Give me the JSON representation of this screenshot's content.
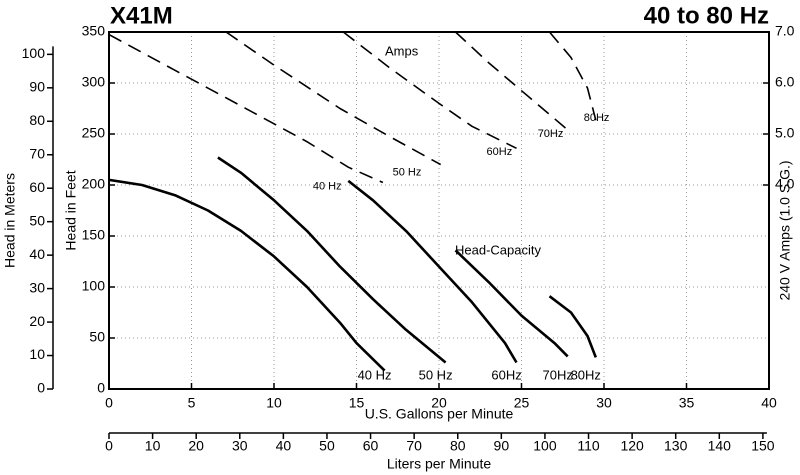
{
  "chart_data": {
    "type": "line",
    "title": "X41M",
    "subtitle": "40 to 80 Hz",
    "x_label": "U.S. Gallons per Minute",
    "y_label": "Head in Feet",
    "y2_label": "240 V Amps (1.0 S.G.)",
    "xlim": [
      0,
      40
    ],
    "xticks": [
      0,
      5,
      10,
      15,
      20,
      25,
      30,
      35,
      40
    ],
    "ylim": [
      0,
      350
    ],
    "yticks": [
      0,
      50,
      100,
      150,
      200,
      250,
      300,
      350
    ],
    "y2lim": [
      0,
      7
    ],
    "y2ticks": [
      {
        "value": 4,
        "label": "4.0"
      },
      {
        "value": 5,
        "label": "5.0"
      },
      {
        "value": 6,
        "label": "6.0"
      },
      {
        "value": 7,
        "label": "7.0"
      }
    ],
    "grid": true,
    "meters_axis": {
      "label": "Head in Meters",
      "lim": [
        0,
        106.68
      ],
      "ticks": [
        0,
        10,
        20,
        30,
        40,
        50,
        60,
        70,
        80,
        90,
        100
      ]
    },
    "lpm_axis": {
      "label": "Liters per Minute",
      "lim": [
        0,
        151.4
      ],
      "ticks": [
        0,
        10,
        20,
        30,
        40,
        50,
        60,
        70,
        80,
        90,
        100,
        110,
        120,
        130,
        140,
        150
      ]
    },
    "annotations": [
      "Amps",
      "Head-Capacity"
    ],
    "series": [
      {
        "name": "40 Hz",
        "color": "#000000",
        "x": [
          0,
          2,
          4,
          6,
          8,
          10,
          12,
          14,
          15,
          16.7
        ],
        "values": [
          205,
          200,
          190,
          175,
          155,
          130,
          100,
          65,
          45,
          18
        ]
      },
      {
        "name": "50 Hz",
        "color": "#000000",
        "x": [
          6.6,
          8,
          10,
          12,
          14,
          16,
          18,
          20.4
        ],
        "values": [
          227,
          212,
          185,
          155,
          120,
          88,
          58,
          26
        ]
      },
      {
        "name": "60Hz",
        "color": "#000000",
        "x": [
          14.5,
          16,
          18,
          20,
          22,
          24,
          24.7
        ],
        "values": [
          204,
          185,
          155,
          120,
          85,
          45,
          26
        ]
      },
      {
        "name": "70Hz",
        "color": "#000000",
        "x": [
          21,
          23,
          25,
          27,
          27.8
        ],
        "values": [
          136,
          105,
          72,
          45,
          32
        ]
      },
      {
        "name": "80Hz",
        "color": "#000000",
        "x": [
          26.7,
          28,
          29,
          29.5
        ],
        "values": [
          91,
          75,
          52,
          31
        ]
      },
      {
        "name": "40 Hz",
        "color": "#000000",
        "axis": "y2",
        "dashed": true,
        "x": [
          0,
          4,
          8,
          12,
          14.5,
          16.6
        ],
        "values": [
          6.95,
          6.25,
          5.55,
          4.85,
          4.35,
          4.05
        ]
      },
      {
        "name": "50 Hz",
        "color": "#000000",
        "axis": "y2",
        "dashed": true,
        "x": [
          7.1,
          10,
          14,
          17,
          20.1
        ],
        "values": [
          7.0,
          6.35,
          5.5,
          4.95,
          4.4
        ]
      },
      {
        "name": "60Hz",
        "color": "#000000",
        "axis": "y2",
        "dashed": true,
        "x": [
          14.2,
          17,
          20,
          22,
          24.7
        ],
        "values": [
          7.0,
          6.3,
          5.6,
          5.15,
          4.72
        ]
      },
      {
        "name": "70Hz",
        "color": "#000000",
        "axis": "y2",
        "dashed": true,
        "x": [
          21,
          23,
          25,
          27.8
        ],
        "values": [
          7.0,
          6.4,
          5.85,
          5.08
        ]
      },
      {
        "name": "80Hz",
        "color": "#000000",
        "axis": "y2",
        "dashed": true,
        "x": [
          26.7,
          28,
          29,
          29.5
        ],
        "values": [
          7.0,
          6.5,
          5.9,
          5.27
        ]
      }
    ]
  }
}
